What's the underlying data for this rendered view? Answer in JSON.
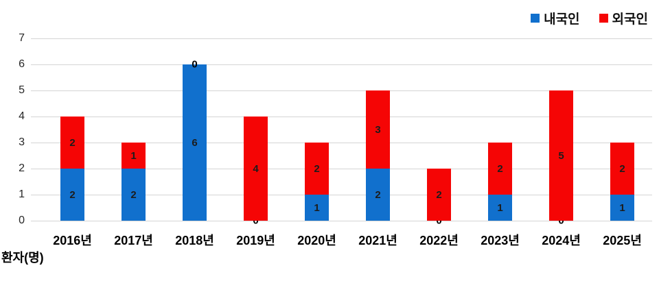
{
  "chart_data": {
    "type": "bar",
    "stacked": true,
    "title": "",
    "categories": [
      "2016년",
      "2017년",
      "2018년",
      "2019년",
      "2020년",
      "2021년",
      "2022년",
      "2023년",
      "2024년",
      "2025년"
    ],
    "series": [
      {
        "name": "내국인",
        "color": "#1170CD",
        "values": [
          2,
          2,
          6,
          0,
          1,
          2,
          0,
          1,
          0,
          1
        ]
      },
      {
        "name": "외국인",
        "color": "#F50505",
        "values": [
          2,
          1,
          0,
          4,
          2,
          3,
          2,
          2,
          5,
          2
        ]
      }
    ],
    "totals": [
      4,
      3,
      6,
      4,
      3,
      5,
      2,
      3,
      5,
      3
    ],
    "xlabel": "",
    "ylabel": "환자(명)",
    "ylim": [
      0,
      7
    ],
    "yticks": [
      0,
      1,
      2,
      3,
      4,
      5,
      6,
      7
    ],
    "grid": true,
    "gridline_color": "#d4d4d4",
    "legend_position": "top-right",
    "data_labels": true
  },
  "labels": {
    "axis_title": "환자(명)"
  }
}
